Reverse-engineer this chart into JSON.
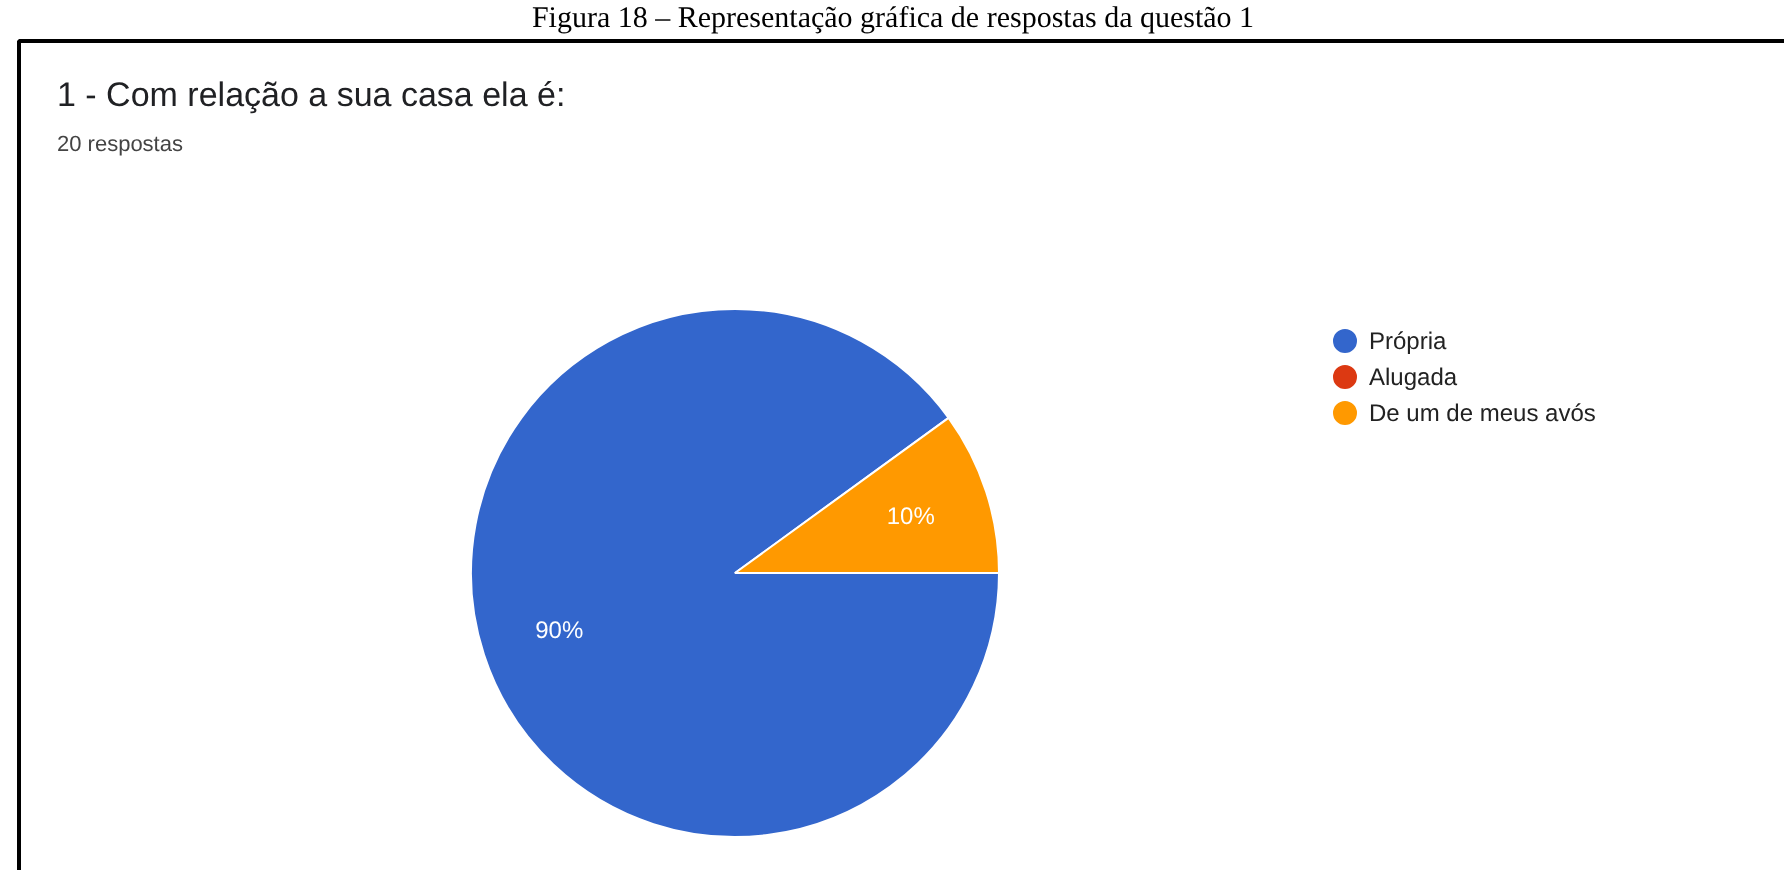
{
  "chart_data": {
    "type": "pie",
    "title": "1 - Com relação a sua casa ela é:",
    "subtitle": "20 respostas",
    "annotations": [
      "Figura 18 – Representação gráfica de respostas da questão 1"
    ],
    "categories": [
      "Própria",
      "Alugada",
      "De um de meus avós"
    ],
    "values": [
      90,
      0,
      10
    ],
    "colors": [
      "#3366cc",
      "#dc3912",
      "#ff9900"
    ],
    "value_labels": [
      "90%",
      null,
      "10%"
    ],
    "legend": "right"
  }
}
